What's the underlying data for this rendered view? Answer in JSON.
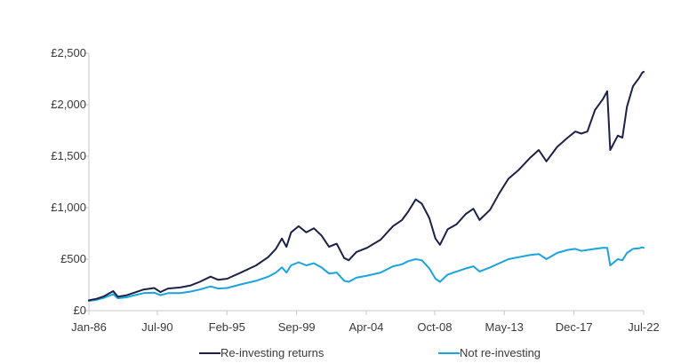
{
  "chart_data": {
    "type": "line",
    "title": "",
    "xlabel": "",
    "ylabel": "",
    "ylim": [
      0,
      2500
    ],
    "xlim": [
      1986.0,
      2022.5
    ],
    "x_ticks": [
      {
        "label": "Jan-86",
        "value": 1986.0
      },
      {
        "label": "Jul-90",
        "value": 1990.5
      },
      {
        "label": "Feb-95",
        "value": 1995.08
      },
      {
        "label": "Sep-99",
        "value": 1999.67
      },
      {
        "label": "Apr-04",
        "value": 2004.25
      },
      {
        "label": "Oct-08",
        "value": 2008.75
      },
      {
        "label": "May-13",
        "value": 2013.33
      },
      {
        "label": "Dec-17",
        "value": 2017.92
      },
      {
        "label": "Jul-22",
        "value": 2022.5
      }
    ],
    "y_ticks": [
      {
        "label": "£0",
        "value": 0
      },
      {
        "label": "£500",
        "value": 500
      },
      {
        "label": "£1,000",
        "value": 1000
      },
      {
        "label": "£1,500",
        "value": 1500
      },
      {
        "label": "£2,000",
        "value": 2000
      },
      {
        "label": "£2,500",
        "value": 2500
      }
    ],
    "legend_position": "bottom",
    "series": [
      {
        "name": "Re-investing returns",
        "color": "#1c2147",
        "points": [
          [
            1986.0,
            100
          ],
          [
            1986.5,
            115
          ],
          [
            1987.0,
            140
          ],
          [
            1987.6,
            190
          ],
          [
            1987.9,
            135
          ],
          [
            1988.5,
            150
          ],
          [
            1989.0,
            175
          ],
          [
            1989.6,
            205
          ],
          [
            1990.3,
            220
          ],
          [
            1990.7,
            180
          ],
          [
            1991.2,
            215
          ],
          [
            1992.0,
            225
          ],
          [
            1992.7,
            245
          ],
          [
            1993.3,
            280
          ],
          [
            1994.0,
            330
          ],
          [
            1994.5,
            300
          ],
          [
            1995.1,
            310
          ],
          [
            1996.0,
            370
          ],
          [
            1997.0,
            440
          ],
          [
            1997.8,
            520
          ],
          [
            1998.3,
            600
          ],
          [
            1998.7,
            700
          ],
          [
            1999.0,
            620
          ],
          [
            1999.3,
            760
          ],
          [
            1999.8,
            820
          ],
          [
            2000.3,
            760
          ],
          [
            2000.8,
            800
          ],
          [
            2001.3,
            730
          ],
          [
            2001.8,
            620
          ],
          [
            2002.3,
            650
          ],
          [
            2002.8,
            510
          ],
          [
            2003.1,
            490
          ],
          [
            2003.6,
            570
          ],
          [
            2004.3,
            610
          ],
          [
            2005.2,
            690
          ],
          [
            2006.0,
            820
          ],
          [
            2006.6,
            880
          ],
          [
            2007.0,
            960
          ],
          [
            2007.5,
            1080
          ],
          [
            2007.9,
            1040
          ],
          [
            2008.4,
            900
          ],
          [
            2008.8,
            700
          ],
          [
            2009.1,
            640
          ],
          [
            2009.6,
            790
          ],
          [
            2010.2,
            840
          ],
          [
            2010.8,
            940
          ],
          [
            2011.3,
            990
          ],
          [
            2011.7,
            880
          ],
          [
            2012.4,
            980
          ],
          [
            2013.0,
            1140
          ],
          [
            2013.6,
            1280
          ],
          [
            2014.3,
            1370
          ],
          [
            2015.0,
            1480
          ],
          [
            2015.6,
            1560
          ],
          [
            2016.1,
            1450
          ],
          [
            2016.8,
            1590
          ],
          [
            2017.5,
            1680
          ],
          [
            2018.0,
            1740
          ],
          [
            2018.4,
            1720
          ],
          [
            2018.8,
            1740
          ],
          [
            2019.3,
            1950
          ],
          [
            2019.8,
            2050
          ],
          [
            2020.1,
            2130
          ],
          [
            2020.3,
            1560
          ],
          [
            2020.8,
            1700
          ],
          [
            2021.1,
            1680
          ],
          [
            2021.4,
            1980
          ],
          [
            2021.8,
            2180
          ],
          [
            2022.2,
            2260
          ],
          [
            2022.4,
            2310
          ],
          [
            2022.5,
            2320
          ]
        ]
      },
      {
        "name": "Not re-investing",
        "color": "#1aa3dd",
        "points": [
          [
            1986.0,
            95
          ],
          [
            1986.5,
            105
          ],
          [
            1987.0,
            125
          ],
          [
            1987.6,
            160
          ],
          [
            1987.9,
            120
          ],
          [
            1988.5,
            130
          ],
          [
            1989.0,
            150
          ],
          [
            1989.6,
            170
          ],
          [
            1990.3,
            175
          ],
          [
            1990.7,
            150
          ],
          [
            1991.2,
            170
          ],
          [
            1992.0,
            170
          ],
          [
            1992.7,
            185
          ],
          [
            1993.3,
            205
          ],
          [
            1994.0,
            235
          ],
          [
            1994.5,
            215
          ],
          [
            1995.1,
            220
          ],
          [
            1996.0,
            255
          ],
          [
            1997.0,
            290
          ],
          [
            1997.8,
            330
          ],
          [
            1998.3,
            370
          ],
          [
            1998.7,
            420
          ],
          [
            1999.0,
            370
          ],
          [
            1999.3,
            440
          ],
          [
            1999.8,
            470
          ],
          [
            2000.3,
            440
          ],
          [
            2000.8,
            460
          ],
          [
            2001.3,
            420
          ],
          [
            2001.8,
            360
          ],
          [
            2002.3,
            370
          ],
          [
            2002.8,
            290
          ],
          [
            2003.1,
            280
          ],
          [
            2003.6,
            320
          ],
          [
            2004.3,
            340
          ],
          [
            2005.2,
            370
          ],
          [
            2006.0,
            430
          ],
          [
            2006.6,
            450
          ],
          [
            2007.0,
            480
          ],
          [
            2007.5,
            500
          ],
          [
            2007.9,
            490
          ],
          [
            2008.4,
            410
          ],
          [
            2008.8,
            310
          ],
          [
            2009.1,
            280
          ],
          [
            2009.6,
            350
          ],
          [
            2010.2,
            380
          ],
          [
            2010.8,
            410
          ],
          [
            2011.3,
            430
          ],
          [
            2011.7,
            380
          ],
          [
            2012.4,
            420
          ],
          [
            2013.0,
            460
          ],
          [
            2013.6,
            500
          ],
          [
            2014.3,
            520
          ],
          [
            2015.0,
            540
          ],
          [
            2015.6,
            550
          ],
          [
            2016.1,
            500
          ],
          [
            2016.8,
            560
          ],
          [
            2017.5,
            590
          ],
          [
            2018.0,
            600
          ],
          [
            2018.4,
            580
          ],
          [
            2018.8,
            590
          ],
          [
            2019.3,
            600
          ],
          [
            2019.8,
            610
          ],
          [
            2020.1,
            610
          ],
          [
            2020.3,
            440
          ],
          [
            2020.8,
            500
          ],
          [
            2021.1,
            490
          ],
          [
            2021.4,
            560
          ],
          [
            2021.8,
            600
          ],
          [
            2022.2,
            605
          ],
          [
            2022.4,
            615
          ],
          [
            2022.5,
            610
          ]
        ]
      }
    ]
  }
}
